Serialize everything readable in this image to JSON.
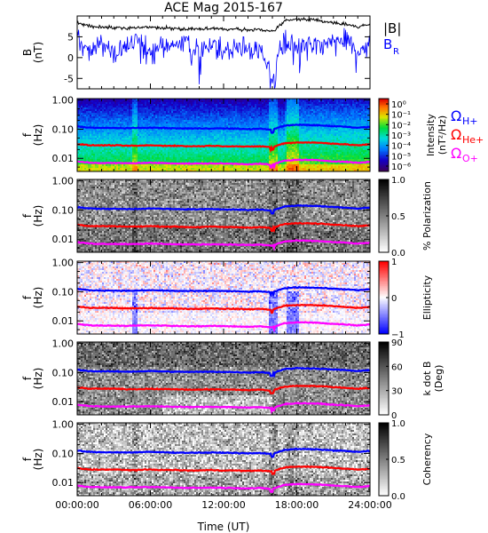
{
  "title": "ACE Mag 2015-167",
  "xlabel": "Time (UT)",
  "xticks": [
    "00:00:00",
    "06:00:00",
    "12:00:00",
    "18:00:00",
    "24:00:00"
  ],
  "colors": {
    "b_total": "#000000",
    "b_radial": "#0000ff",
    "omega_h": "#0000ff",
    "omega_he": "#ff0000",
    "omega_o": "#ff00ff"
  },
  "chart_data": [
    {
      "type": "line",
      "panel": "magnetic-field",
      "ylabel_main": "B",
      "ylabel_unit": "(nT)",
      "yticks": [
        "5",
        "0",
        "-5"
      ],
      "ylim": [
        -7.5,
        10.0
      ],
      "legend": [
        "|B|",
        "B",
        "R"
      ],
      "x_hours": [
        0,
        1,
        2,
        3,
        4,
        5,
        6,
        7,
        8,
        9,
        10,
        11,
        12,
        13,
        14,
        15,
        16,
        17,
        18,
        19,
        20,
        21,
        22,
        23,
        24
      ],
      "series": [
        {
          "name": "|B|",
          "values": [
            8.3,
            7.6,
            7.3,
            7.3,
            7.1,
            7.2,
            7.4,
            7.2,
            7.0,
            6.9,
            6.9,
            7.0,
            6.9,
            6.8,
            6.6,
            6.8,
            6.3,
            8.7,
            9.3,
            9.2,
            8.8,
            8.3,
            8.0,
            7.3,
            8.0
          ]
        },
        {
          "name": "B R",
          "values": [
            4.5,
            1.5,
            3.0,
            1.0,
            2.5,
            3.5,
            1.8,
            2.5,
            3.0,
            3.2,
            2.0,
            3.2,
            1.5,
            3.0,
            2.5,
            1.0,
            -3.0,
            5.0,
            2.5,
            3.0,
            2.0,
            4.5,
            4.0,
            2.0,
            3.0
          ]
        }
      ]
    },
    {
      "type": "heatmap",
      "panel": "intensity",
      "ylabel_main": "f",
      "ylabel_unit": "(Hz)",
      "yticks": [
        "1.00",
        "0.10",
        "0.01"
      ],
      "colorbar_label": "Intensity",
      "colorbar_unit": "(nT²/Hz)",
      "colorbar_ticks": [
        "10⁰",
        "10⁻¹",
        "10⁻²",
        "10⁻³",
        "10⁻⁴",
        "10⁻⁵",
        "10⁻⁶"
      ],
      "legend": [
        {
          "sym": "Ω",
          "sub": "H+"
        },
        {
          "sym": "Ω",
          "sub": "He+"
        },
        {
          "sym": "Ω",
          "sub": "O+"
        }
      ]
    },
    {
      "type": "heatmap",
      "panel": "polarization",
      "ylabel_main": "f",
      "ylabel_unit": "(Hz)",
      "yticks": [
        "1.00",
        "0.10",
        "0.01"
      ],
      "colorbar_label": "% Polarization",
      "colorbar_ticks": [
        "1.0",
        "0.5",
        "0.0"
      ]
    },
    {
      "type": "heatmap",
      "panel": "ellipticity",
      "ylabel_main": "f",
      "ylabel_unit": "(Hz)",
      "yticks": [
        "1.00",
        "0.10",
        "0.01"
      ],
      "colorbar_label": "Ellipticity",
      "colorbar_ticks": [
        "1",
        "0",
        "−1"
      ]
    },
    {
      "type": "heatmap",
      "panel": "kdotb",
      "ylabel_main": "f",
      "ylabel_unit": "(Hz)",
      "yticks": [
        "1.00",
        "0.10",
        "0.01"
      ],
      "colorbar_label": "k dot B",
      "colorbar_unit": "(Deg)",
      "colorbar_ticks": [
        "90",
        "60",
        "30",
        "0"
      ]
    },
    {
      "type": "heatmap",
      "panel": "coherency",
      "ylabel_main": "f",
      "ylabel_unit": "(Hz)",
      "yticks": [
        "1.00",
        "0.10",
        "0.01"
      ],
      "colorbar_label": "Coherency",
      "colorbar_ticks": [
        "1.0",
        "0.5",
        "0.0"
      ]
    }
  ],
  "gyro_lines": {
    "x_hours": [
      0,
      1,
      2,
      3,
      4,
      5,
      6,
      7,
      8,
      9,
      10,
      11,
      12,
      13,
      14,
      15,
      16,
      17,
      18,
      19,
      20,
      21,
      22,
      23,
      24
    ],
    "f_h": [
      0.125,
      0.113,
      0.11,
      0.11,
      0.108,
      0.11,
      0.113,
      0.11,
      0.107,
      0.106,
      0.106,
      0.107,
      0.106,
      0.104,
      0.1,
      0.104,
      0.095,
      0.132,
      0.142,
      0.14,
      0.135,
      0.127,
      0.122,
      0.112,
      0.122
    ],
    "f_he": [
      0.031,
      0.028,
      0.028,
      0.028,
      0.027,
      0.027,
      0.028,
      0.027,
      0.027,
      0.026,
      0.026,
      0.027,
      0.026,
      0.026,
      0.025,
      0.026,
      0.024,
      0.033,
      0.035,
      0.035,
      0.034,
      0.032,
      0.03,
      0.028,
      0.03
    ],
    "f_o": [
      0.0078,
      0.0071,
      0.0069,
      0.0069,
      0.0068,
      0.0069,
      0.007,
      0.0069,
      0.0067,
      0.0066,
      0.0066,
      0.0067,
      0.0066,
      0.0065,
      0.0063,
      0.0065,
      0.006,
      0.0083,
      0.0089,
      0.0088,
      0.0085,
      0.0079,
      0.0076,
      0.007,
      0.0076
    ]
  }
}
